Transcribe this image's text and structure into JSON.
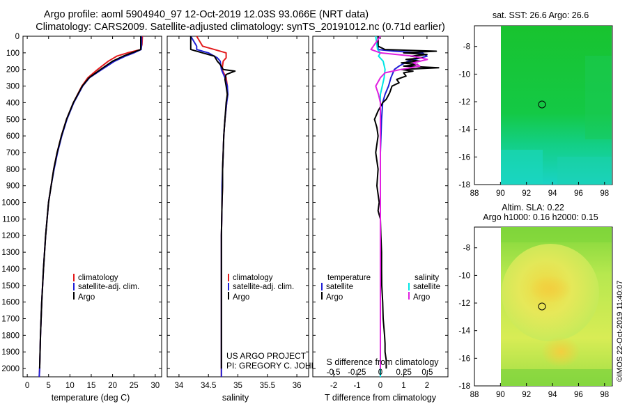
{
  "title_line1": "Argo profile: aoml 5904940_97 12-Oct-2019 12.03S 93.066E (NRT data)",
  "title_line2": "Climatology: CARS2009. Satellite-adjusted climatology: synTS_20191012.nc (0.71d earlier)",
  "depth_ticks": [
    0,
    100,
    200,
    300,
    400,
    500,
    600,
    700,
    800,
    900,
    1000,
    1100,
    1200,
    1300,
    1400,
    1500,
    1600,
    1700,
    1800,
    1900,
    2000
  ],
  "project_line1": "US ARGO PROJECT",
  "project_line2": "PI: GREGORY C. JOHNSON",
  "s_diff_label": "S difference from climatology",
  "s_diff_ticks": [
    "-0.5",
    "-0.25",
    "0",
    "0.25",
    "0.5"
  ],
  "map_top": {
    "title": "sat. SST: 26.6 Argo: 26.6",
    "x_ticks": [
      "88",
      "90",
      "92",
      "94",
      "96",
      "98"
    ],
    "y_ticks": [
      "-8",
      "-10",
      "-12",
      "-14",
      "-16",
      "-18"
    ]
  },
  "map_bottom": {
    "title_line1": "Altim. SLA: 0.22",
    "title_line2": "Argo h1000: 0.16 h2000: 0.15",
    "x_ticks": [
      "88",
      "90",
      "92",
      "94",
      "96",
      "98"
    ],
    "y_ticks": [
      "-8",
      "-10",
      "-12",
      "-14",
      "-16",
      "-18"
    ]
  },
  "footer": "©IMOS 22-Oct-2019 11:40:07",
  "colors": {
    "climatology": "#e31a1c",
    "satellite": "#1f1fd6",
    "argo": "#000000",
    "sat_salinity": "#00e5e5",
    "argo_salinity": "#e020e0"
  },
  "chart_data": [
    {
      "type": "line",
      "name": "temperature",
      "xlabel": "temperature (deg C)",
      "ylabel": "depth",
      "xlim": [
        -1,
        31.5
      ],
      "ylim": [
        2050,
        0
      ],
      "x_ticks": [
        0,
        5,
        10,
        15,
        20,
        25,
        30
      ],
      "legend": [
        "climatology",
        "satellite-adj. clim.",
        "Argo"
      ],
      "series": [
        {
          "name": "climatology",
          "depth": [
            0,
            50,
            80,
            100,
            120,
            150,
            200,
            250,
            300,
            400,
            500,
            600,
            700,
            800,
            900,
            1000,
            1200,
            1400,
            1600,
            1800,
            2000,
            2050
          ],
          "values": [
            27.0,
            26.9,
            26.6,
            23.5,
            21.0,
            19.0,
            16.5,
            14.2,
            12.8,
            10.8,
            9.2,
            8.0,
            7.0,
            6.2,
            5.6,
            5.0,
            4.3,
            3.8,
            3.4,
            3.1,
            2.9,
            2.8
          ]
        },
        {
          "name": "satellite-adj. clim.",
          "depth": [
            0,
            50,
            80,
            100,
            120,
            150,
            200,
            250,
            300,
            400,
            500,
            600,
            700,
            800,
            900,
            1000,
            1200,
            1400,
            1600,
            1800,
            2000,
            2050
          ],
          "values": [
            26.8,
            26.8,
            26.7,
            25.0,
            23.0,
            20.5,
            17.5,
            14.6,
            13.0,
            10.9,
            9.3,
            8.1,
            7.1,
            6.3,
            5.6,
            5.0,
            4.3,
            3.8,
            3.4,
            3.1,
            2.9,
            2.8
          ]
        },
        {
          "name": "Argo",
          "depth": [
            0,
            50,
            80,
            100,
            120,
            150,
            200,
            250,
            300,
            400,
            500,
            600,
            700,
            800,
            900,
            1000,
            1200,
            1400,
            1600,
            1800,
            2000
          ],
          "values": [
            26.6,
            26.6,
            26.6,
            24.5,
            22.5,
            20.0,
            17.2,
            14.5,
            12.9,
            10.8,
            9.2,
            8.0,
            7.0,
            6.2,
            5.6,
            5.0,
            4.3,
            3.8,
            3.4,
            3.1,
            2.9
          ]
        }
      ]
    },
    {
      "type": "line",
      "name": "salinity",
      "xlabel": "salinity",
      "ylabel": "depth",
      "xlim": [
        33.8,
        36.2
      ],
      "ylim": [
        2050,
        0
      ],
      "x_ticks": [
        34,
        34.5,
        35,
        35.5,
        36
      ],
      "legend": [
        "climatology",
        "satellite-adj. clim.",
        "Argo"
      ],
      "series": [
        {
          "name": "climatology",
          "depth": [
            0,
            60,
            80,
            100,
            130,
            150,
            200,
            250,
            300,
            350,
            400,
            500,
            600,
            700,
            800,
            900,
            1000,
            1200,
            1400,
            1600,
            1800,
            2000,
            2050
          ],
          "values": [
            34.3,
            34.4,
            34.6,
            34.8,
            34.8,
            34.75,
            34.73,
            34.8,
            34.82,
            34.82,
            34.81,
            34.78,
            34.76,
            34.75,
            34.74,
            34.74,
            34.73,
            34.72,
            34.72,
            34.72,
            34.72,
            34.72,
            34.72
          ]
        },
        {
          "name": "satellite-adj. clim.",
          "depth": [
            0,
            60,
            80,
            100,
            130,
            150,
            200,
            250,
            300,
            350,
            400,
            500,
            600,
            700,
            800,
            900,
            1000,
            1200,
            1400,
            1600,
            1800,
            2000,
            2050
          ],
          "values": [
            34.2,
            34.3,
            34.3,
            34.5,
            34.65,
            34.7,
            34.72,
            34.78,
            34.82,
            34.83,
            34.81,
            34.78,
            34.76,
            34.75,
            34.74,
            34.73,
            34.73,
            34.72,
            34.72,
            34.72,
            34.72,
            34.72,
            34.72
          ]
        },
        {
          "name": "Argo",
          "depth": [
            0,
            80,
            100,
            120,
            150,
            170,
            200,
            210,
            230,
            260,
            300,
            350,
            400,
            500,
            600,
            700,
            800,
            900,
            1000,
            1200,
            1400,
            1600,
            1800,
            2000
          ],
          "values": [
            34.2,
            34.2,
            34.4,
            34.6,
            34.65,
            34.7,
            34.75,
            34.95,
            34.8,
            34.78,
            34.8,
            34.82,
            34.8,
            34.78,
            34.76,
            34.75,
            34.74,
            34.74,
            34.73,
            34.72,
            34.72,
            34.72,
            34.72,
            34.72
          ]
        }
      ]
    },
    {
      "type": "line",
      "name": "differences",
      "xlabel": "T difference from climatology",
      "x2label": "S difference from climatology",
      "xlim": [
        -2.9,
        2.9
      ],
      "x2lim": [
        -0.72,
        0.72
      ],
      "ylim": [
        2050,
        0
      ],
      "x_ticks": [
        -2,
        -1,
        0,
        1,
        2
      ],
      "x2_ticks": [
        -0.5,
        -0.25,
        0,
        0.25,
        0.5
      ],
      "legend_temperature_header": "temperature",
      "legend_salinity_header": "salinity",
      "legend_labels": [
        "satellite",
        "Argo"
      ],
      "series": [
        {
          "name": "T satellite",
          "axis": "T",
          "depth": [
            0,
            80,
            90,
            100,
            120,
            150,
            180,
            200,
            250,
            300,
            350,
            400,
            500,
            700,
            1000,
            1500,
            2000,
            2050
          ],
          "values": [
            -0.1,
            -0.1,
            0.6,
            1.8,
            2.0,
            1.2,
            0.8,
            0.6,
            0.45,
            0.35,
            0.2,
            0.1,
            0.05,
            0.0,
            0.0,
            0.0,
            0.0,
            0.0
          ]
        },
        {
          "name": "T Argo",
          "axis": "T",
          "depth": [
            0,
            60,
            80,
            90,
            100,
            110,
            120,
            130,
            140,
            150,
            160,
            170,
            180,
            190,
            200,
            210,
            220,
            240,
            260,
            280,
            300,
            340,
            380,
            400,
            450,
            500,
            550,
            600,
            700,
            800,
            900,
            1000,
            1050,
            1100,
            1200,
            1300,
            1400,
            1500,
            1600,
            1700,
            1800,
            1850,
            1900,
            1950,
            2000
          ],
          "values": [
            -0.1,
            -0.1,
            0.2,
            2.4,
            1.0,
            2.0,
            1.3,
            1.8,
            1.1,
            1.7,
            0.9,
            1.6,
            1.0,
            2.5,
            0.9,
            1.4,
            1.0,
            1.1,
            0.7,
            0.8,
            0.5,
            0.4,
            0.25,
            0.1,
            -0.1,
            -0.25,
            -0.15,
            -0.1,
            -0.2,
            -0.1,
            -0.15,
            -0.05,
            -0.1,
            0.0,
            0.02,
            0.05,
            0.05,
            0.06,
            0.1,
            0.12,
            0.18,
            0.2,
            0.2,
            0.25,
            0.25
          ]
        },
        {
          "name": "S satellite",
          "axis": "S",
          "depth": [
            0,
            80,
            100,
            120,
            150,
            200,
            250,
            300,
            350,
            400,
            500,
            700,
            1000,
            1500,
            2000,
            2050
          ],
          "values": [
            -0.05,
            -0.03,
            0.0,
            -0.02,
            0.03,
            0.05,
            0.04,
            0.02,
            0.0,
            0.0,
            0.0,
            0.0,
            0.0,
            0.0,
            0.0,
            0.0
          ]
        },
        {
          "name": "S Argo",
          "axis": "S",
          "depth": [
            0,
            80,
            100,
            120,
            140,
            160,
            180,
            200,
            220,
            250,
            300,
            350,
            400,
            500,
            700,
            1000,
            1500,
            2000
          ],
          "values": [
            0.0,
            -0.1,
            0.0,
            0.35,
            0.5,
            0.35,
            0.42,
            0.22,
            0.05,
            0.0,
            -0.05,
            -0.02,
            0.0,
            0.0,
            0.0,
            0.0,
            0.0,
            0.0
          ]
        }
      ]
    }
  ]
}
